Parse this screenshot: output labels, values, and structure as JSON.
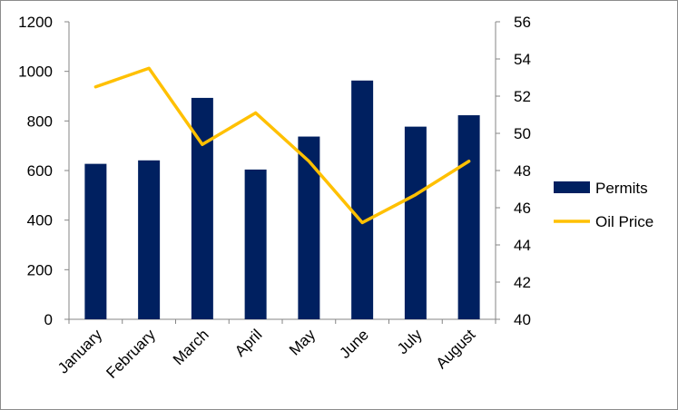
{
  "chart_data": {
    "type": "bar+line",
    "title": "",
    "categories": [
      "January",
      "February",
      "March",
      "April",
      "May",
      "June",
      "July",
      "August"
    ],
    "series": [
      {
        "name": "Permits",
        "type": "bar",
        "axis": "left",
        "color": "#002060",
        "values": [
          627,
          641,
          893,
          604,
          737,
          963,
          777,
          823
        ]
      },
      {
        "name": "Oil Price",
        "type": "line",
        "axis": "right",
        "color": "#FFC000",
        "values": [
          52.5,
          53.5,
          49.4,
          51.1,
          48.5,
          45.2,
          46.7,
          48.5
        ]
      }
    ],
    "y_left": {
      "min": 0,
      "max": 1200,
      "ticks": [
        "0",
        "200",
        "400",
        "600",
        "800",
        "1000",
        "1200"
      ]
    },
    "y_right": {
      "min": 40,
      "max": 56,
      "ticks": [
        "40",
        "42",
        "44",
        "46",
        "48",
        "50",
        "52",
        "54",
        "56"
      ]
    },
    "xlabel": "",
    "ylabel": "",
    "grid": false,
    "legend": {
      "position": "right",
      "entries": [
        "Permits",
        "Oil Price"
      ]
    }
  }
}
